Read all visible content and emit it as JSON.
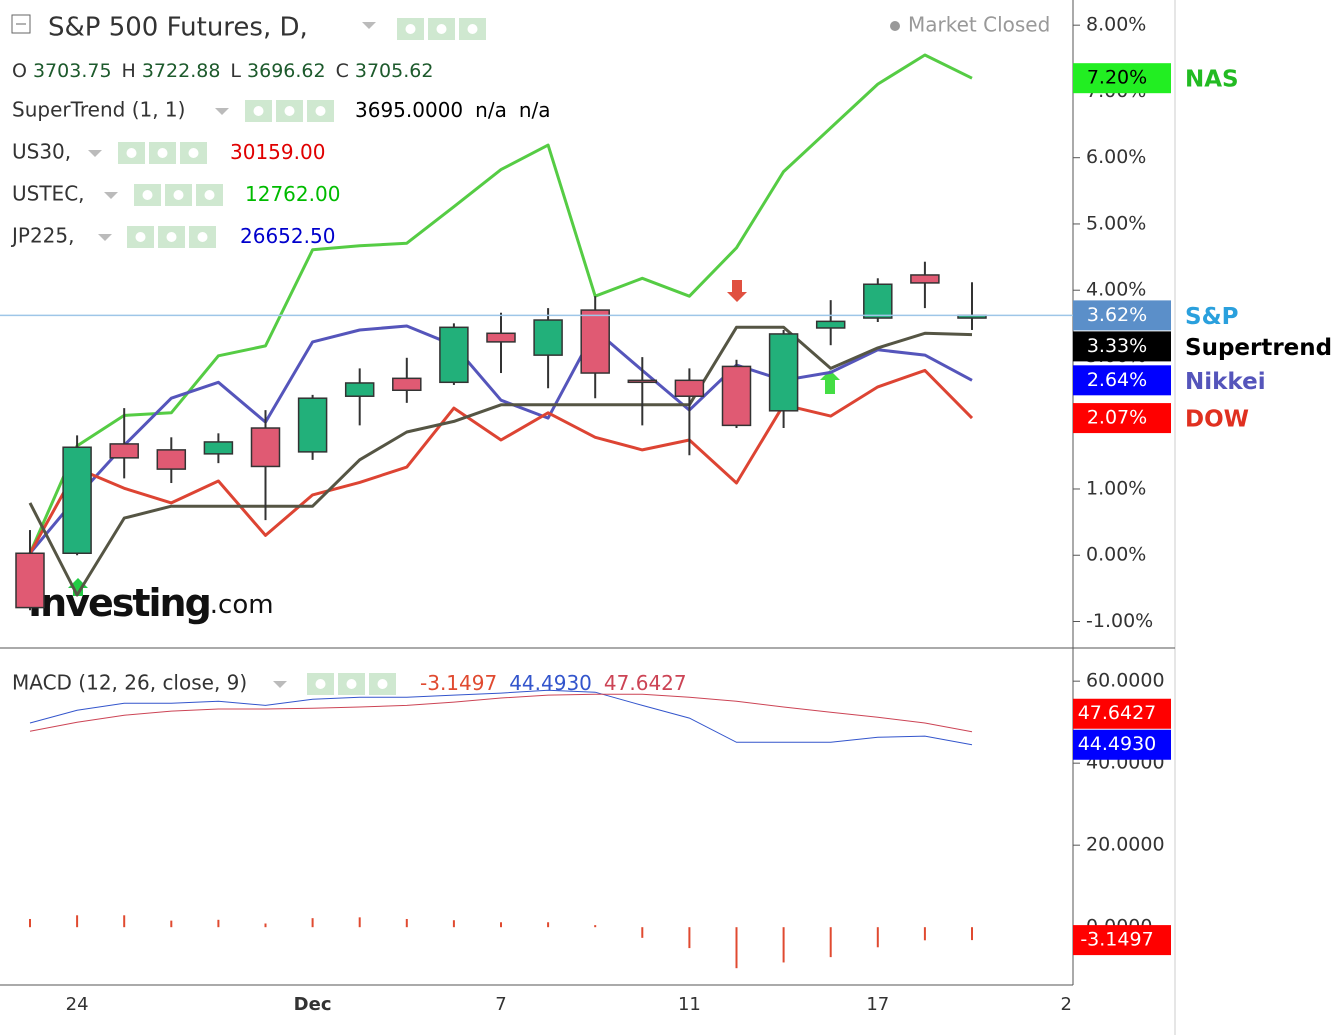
{
  "header": {
    "title": "S&P 500 Futures, D,",
    "status": "Market Closed",
    "ohlc": [
      {
        "key": "O",
        "value": 3703.75
      },
      {
        "key": "H",
        "value": 3722.88
      },
      {
        "key": "L",
        "value": 3696.62
      },
      {
        "key": "C",
        "value": 3705.62
      }
    ],
    "indicators": [
      {
        "name": "SuperTrend (1, 1)",
        "values": [
          "3695.0000",
          "n/a",
          "n/a"
        ],
        "color": "#000000"
      },
      {
        "name": "US30,",
        "values": [
          "30159.00"
        ],
        "color": "#e00000"
      },
      {
        "name": "USTEC,",
        "values": [
          "12762.00"
        ],
        "color": "#00bb00"
      },
      {
        "name": "JP225,",
        "values": [
          "26652.50"
        ],
        "color": "#0000cc"
      }
    ],
    "watermark_brand": "Investing",
    "watermark_suffix": ".com"
  },
  "chart_data": [
    {
      "type": "candlestick",
      "categories": [
        null,
        "24",
        null,
        null,
        null,
        null,
        "Dec",
        null,
        null,
        null,
        "7",
        null,
        null,
        null,
        "11",
        null,
        null,
        null,
        "17",
        null,
        null,
        null,
        "2"
      ],
      "ylim": [
        -1.4,
        8.38
      ],
      "yticks": [
        {
          "value": -1,
          "label": "-1.00%"
        },
        {
          "value": 0,
          "label": "0.00%"
        },
        {
          "value": 1,
          "label": "1.00%"
        },
        {
          "value": 2,
          "label": "2.00%"
        },
        {
          "value": 3,
          "label": "3.00%"
        },
        {
          "value": 4,
          "label": "4.00%"
        },
        {
          "value": 5,
          "label": "5.00%"
        },
        {
          "value": 6,
          "label": "6.00%"
        },
        {
          "value": 7,
          "label": "7.00%"
        },
        {
          "value": 8,
          "label": "8.00%"
        }
      ],
      "price_line": true,
      "series": [
        {
          "name": "NAS",
          "kind": "line",
          "color": "#55cc44",
          "tag_color": "#22ee22",
          "tag_text_color": "#000000",
          "name_color": "#22bb22",
          "last_label": "7.20%",
          "values": [
            0.03,
            1.65,
            2.11,
            2.15,
            3.01,
            3.16,
            4.61,
            4.67,
            4.71,
            5.26,
            5.82,
            6.19,
            3.91,
            4.18,
            3.91,
            4.64,
            5.79,
            6.45,
            7.11,
            7.55,
            7.2,
            null,
            null
          ]
        },
        {
          "name": "Nikkei",
          "kind": "line",
          "color": "#5555bb",
          "tag_color": "#0000ff",
          "tag_text_color": "#ffffff",
          "name_color": "#5555bb",
          "last_label": "2.64%",
          "values": [
            0.03,
            0.88,
            1.66,
            2.37,
            2.61,
            2.01,
            3.22,
            3.4,
            3.46,
            3.17,
            2.34,
            2.07,
            3.4,
            2.79,
            2.19,
            2.87,
            2.64,
            2.76,
            3.1,
            3.02,
            2.64,
            null,
            null
          ]
        },
        {
          "name": "DOW",
          "kind": "line",
          "color": "#dd4433",
          "tag_color": "#ff0000",
          "tag_text_color": "#ffffff",
          "name_color": "#e03020",
          "last_label": "2.07%",
          "values": [
            0.03,
            1.31,
            1.01,
            0.79,
            1.12,
            0.3,
            0.91,
            1.1,
            1.33,
            2.22,
            1.74,
            2.15,
            1.78,
            1.59,
            1.74,
            1.09,
            2.27,
            2.1,
            2.54,
            2.79,
            2.07,
            null,
            null
          ]
        },
        {
          "name": "Supertrend",
          "kind": "line",
          "color": "#555544",
          "tag_color": "#000000",
          "tag_text_color": "#ffffff",
          "name_color": "#000000",
          "last_label": "3.33%",
          "values": [
            0.79,
            -0.6,
            0.56,
            0.74,
            0.74,
            0.74,
            0.74,
            1.44,
            1.86,
            2.02,
            2.27,
            2.27,
            2.27,
            2.27,
            2.27,
            3.44,
            3.44,
            2.82,
            3.13,
            3.35,
            3.33,
            null,
            null
          ]
        },
        {
          "name": "S&P",
          "kind": "candles",
          "up_color": "#22b07a",
          "down_color": "#e05a73",
          "tag_color": "#5b8fc9",
          "tag_text_color": "#ffffff",
          "name_color": "#2aa0dd",
          "last_label": "3.62%",
          "open": [
            0.03,
            0.03,
            1.68,
            1.59,
            1.53,
            1.92,
            1.56,
            2.4,
            2.67,
            2.61,
            3.35,
            3.02,
            3.7,
            2.64,
            2.64,
            2.85,
            2.18,
            3.43,
            3.58,
            4.23,
            3.58,
            null,
            null
          ],
          "high": [
            0.38,
            1.81,
            2.22,
            1.78,
            1.84,
            2.19,
            2.42,
            2.82,
            2.98,
            3.5,
            3.66,
            3.73,
            3.91,
            2.99,
            2.82,
            2.95,
            3.4,
            3.85,
            4.18,
            4.43,
            4.12,
            null,
            null
          ],
          "low": [
            -0.83,
            0.0,
            1.16,
            1.09,
            1.39,
            0.53,
            1.44,
            1.96,
            2.3,
            2.57,
            2.75,
            2.52,
            2.37,
            1.96,
            1.51,
            1.92,
            1.92,
            3.17,
            3.52,
            3.73,
            3.4,
            null,
            null
          ],
          "close": [
            -0.79,
            1.63,
            1.47,
            1.3,
            1.71,
            1.34,
            2.37,
            2.6,
            2.49,
            3.44,
            3.22,
            3.55,
            2.75,
            2.61,
            2.4,
            1.96,
            3.34,
            3.53,
            4.09,
            4.11,
            3.62,
            null,
            null
          ]
        }
      ]
    },
    {
      "type": "macd",
      "title": "MACD (12, 26, close, 9)",
      "ylim": [
        -14.1,
        67.6
      ],
      "yticks": [
        {
          "value": 0,
          "label": "0.0000"
        },
        {
          "value": 20,
          "label": "20.0000"
        },
        {
          "value": 40,
          "label": "40.0000"
        },
        {
          "value": 60,
          "label": "60.0000"
        }
      ],
      "series": [
        {
          "kind": "histogram",
          "color": "#e04a30",
          "tag_color": "#ff0000",
          "tag_text_color": "#ffffff",
          "last_label": "-3.1497",
          "values": [
            2.0,
            2.9,
            2.9,
            1.6,
            1.8,
            0.9,
            2.2,
            2.4,
            2.0,
            1.7,
            1.2,
            1.2,
            0.5,
            -2.6,
            -5.1,
            -10.0,
            -8.6,
            -7.3,
            -4.9,
            -3.2,
            -3.1497,
            null,
            null
          ]
        },
        {
          "kind": "line",
          "color": "#3355cc",
          "tag_color": "#0000ff",
          "tag_text_color": "#ffffff",
          "last_label": "44.4930",
          "values": [
            49.8,
            52.9,
            54.6,
            54.6,
            55.1,
            54.1,
            55.6,
            56.1,
            56.1,
            56.6,
            57.1,
            57.8,
            57.3,
            54.1,
            51.0,
            45.1,
            45.1,
            45.1,
            46.3,
            46.6,
            44.493,
            null,
            null
          ]
        },
        {
          "kind": "line",
          "color": "#cc4455",
          "tag_color": "#ff0000",
          "tag_text_color": "#ffffff",
          "last_label": "47.6427",
          "values": [
            47.8,
            50.0,
            51.7,
            52.7,
            53.2,
            53.2,
            53.4,
            53.7,
            54.1,
            54.9,
            55.9,
            56.6,
            56.8,
            56.8,
            56.1,
            55.1,
            53.7,
            52.4,
            51.2,
            49.8,
            47.6427,
            null,
            null
          ]
        }
      ]
    }
  ]
}
